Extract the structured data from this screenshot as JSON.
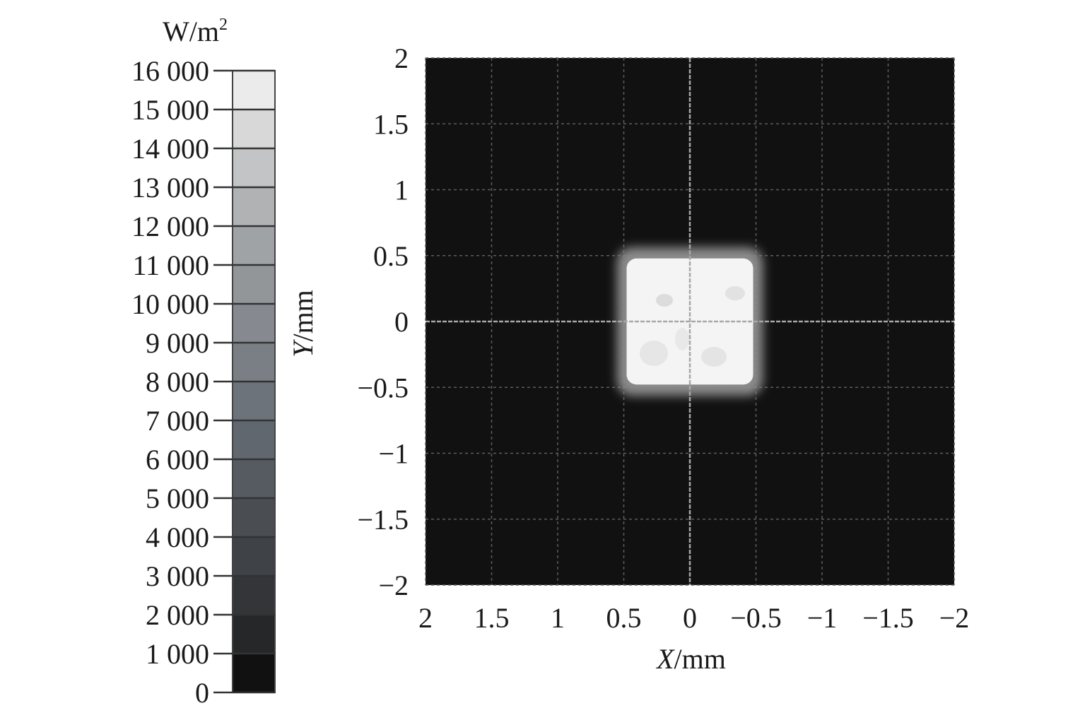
{
  "chart_data": {
    "type": "heatmap",
    "title": "",
    "xlabel_var": "X",
    "xlabel_unit": "/mm",
    "ylabel_var": "Y",
    "ylabel_unit": "/mm",
    "xlim": [
      2,
      -2
    ],
    "ylim": [
      -2,
      2
    ],
    "x_reversed": true,
    "x_ticks": [
      2,
      1.5,
      1,
      0.5,
      0,
      -0.5,
      -1,
      -1.5,
      -2
    ],
    "x_tick_labels": [
      "2",
      "1.5",
      "1",
      "0.5",
      "0",
      "−0.5",
      "−1",
      "−1.5",
      "−2"
    ],
    "y_ticks": [
      2,
      1.5,
      1,
      0.5,
      0,
      -0.5,
      -1,
      -1.5,
      -2
    ],
    "y_tick_labels": [
      "2",
      "1.5",
      "1",
      "0.5",
      "0",
      "−0.5",
      "−1",
      "−1.5",
      "−2"
    ],
    "grid": true,
    "background_color": "#111111",
    "spot": {
      "x_range": [
        -0.5,
        0.5
      ],
      "y_range": [
        -0.5,
        0.5
      ],
      "intensity": 15000,
      "color": "#f4f4f4"
    },
    "colorbar": {
      "unit_base": "W/m",
      "unit_exp": "2",
      "min": 0,
      "max": 16000,
      "ticks": [
        16000,
        15000,
        14000,
        13000,
        12000,
        11000,
        10000,
        9000,
        8000,
        7000,
        6000,
        5000,
        4000,
        3000,
        2000,
        1000,
        0
      ],
      "tick_labels": [
        "16 000",
        "15 000",
        "14 000",
        "13 000",
        "12 000",
        "11 000",
        "10 000",
        "9 000",
        "8 000",
        "7 000",
        "6 000",
        "5 000",
        "4 000",
        "3 000",
        "2 000",
        "1 000",
        "0"
      ],
      "band_colors": [
        "#111111",
        "#262728",
        "#333538",
        "#3f4246",
        "#4a4e53",
        "#565b61",
        "#61676e",
        "#6d737b",
        "#7a7f86",
        "#868a90",
        "#939699",
        "#a0a3a6",
        "#b0b2b4",
        "#c3c4c5",
        "#d8d8d8",
        "#ebebeb"
      ]
    }
  }
}
